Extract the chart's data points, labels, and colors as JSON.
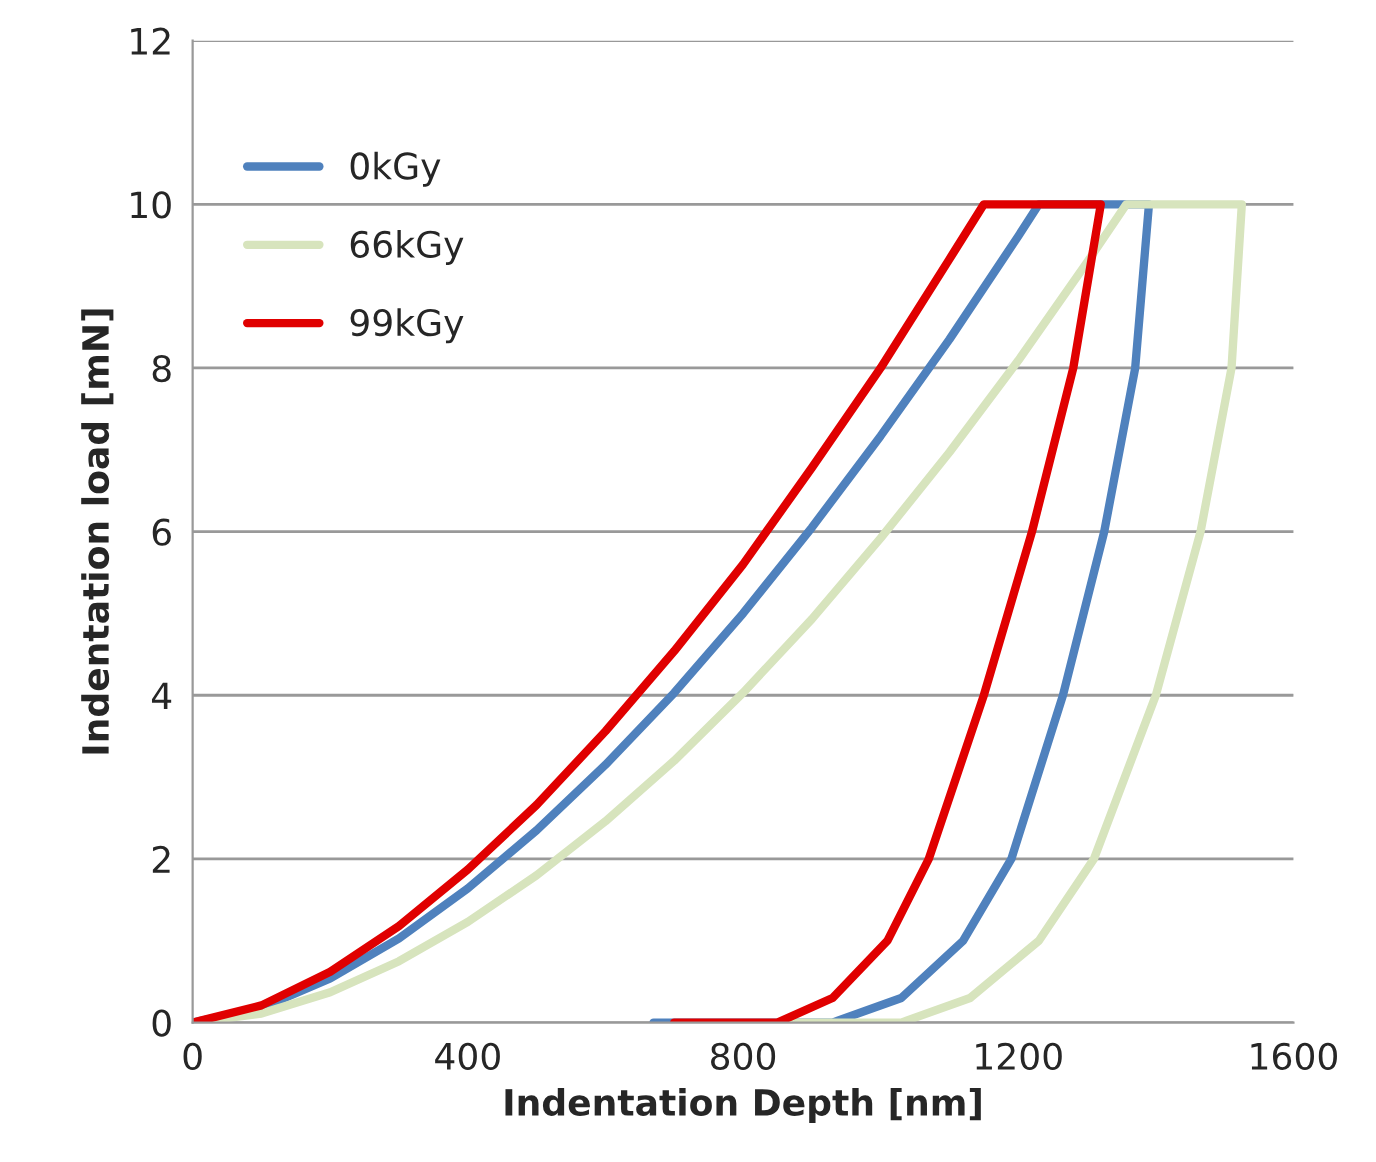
{
  "chart_data": {
    "type": "line",
    "xlabel": "Indentation Depth [nm]",
    "ylabel": "Indentation load [mN]",
    "xlim": [
      0,
      1600
    ],
    "xticks": [
      0,
      400,
      800,
      1200,
      1600
    ],
    "ylim": [
      0,
      12
    ],
    "yticks": [
      0,
      2,
      4,
      6,
      8,
      10,
      12
    ],
    "grid": "y",
    "legend": "top left",
    "marker": "none",
    "line_style": "solid",
    "series": [
      {
        "name": "0kGy",
        "color": "#4f81bd",
        "x": [
          0,
          100,
          200,
          300,
          400,
          500,
          600,
          700,
          800,
          900,
          1000,
          1100,
          1200,
          1230,
          1390,
          1370,
          1325,
          1265,
          1190,
          1120,
          1030,
          930,
          670
        ],
        "values": [
          0,
          0.18,
          0.54,
          1.03,
          1.64,
          2.35,
          3.15,
          4.03,
          5.0,
          6.05,
          7.17,
          8.35,
          9.61,
          10,
          10,
          8,
          6,
          4,
          2,
          1,
          0.3,
          0,
          0
        ]
      },
      {
        "name": "66kGy",
        "color": "#d7e4bd",
        "x": [
          0,
          100,
          200,
          300,
          400,
          500,
          600,
          700,
          800,
          900,
          1000,
          1100,
          1200,
          1300,
          1357,
          1525,
          1510,
          1465,
          1400,
          1310,
          1230,
          1130,
          1030,
          860
        ],
        "values": [
          0,
          0.11,
          0.37,
          0.75,
          1.23,
          1.8,
          2.46,
          3.2,
          4.03,
          4.93,
          5.92,
          6.97,
          8.09,
          9.29,
          10,
          10,
          8,
          6,
          4,
          2,
          1,
          0.3,
          0,
          0
        ]
      },
      {
        "name": "99kGy",
        "color": "#e00000",
        "x": [
          0,
          100,
          200,
          300,
          400,
          500,
          600,
          700,
          800,
          900,
          1000,
          1100,
          1150,
          1320,
          1280,
          1220,
          1150,
          1070,
          1010,
          930,
          850,
          700
        ],
        "values": [
          0,
          0.21,
          0.62,
          1.18,
          1.87,
          2.66,
          3.56,
          4.54,
          5.6,
          6.78,
          8.0,
          9.33,
          10,
          10,
          8,
          6,
          4,
          2,
          1,
          0.3,
          0,
          0
        ]
      }
    ]
  }
}
